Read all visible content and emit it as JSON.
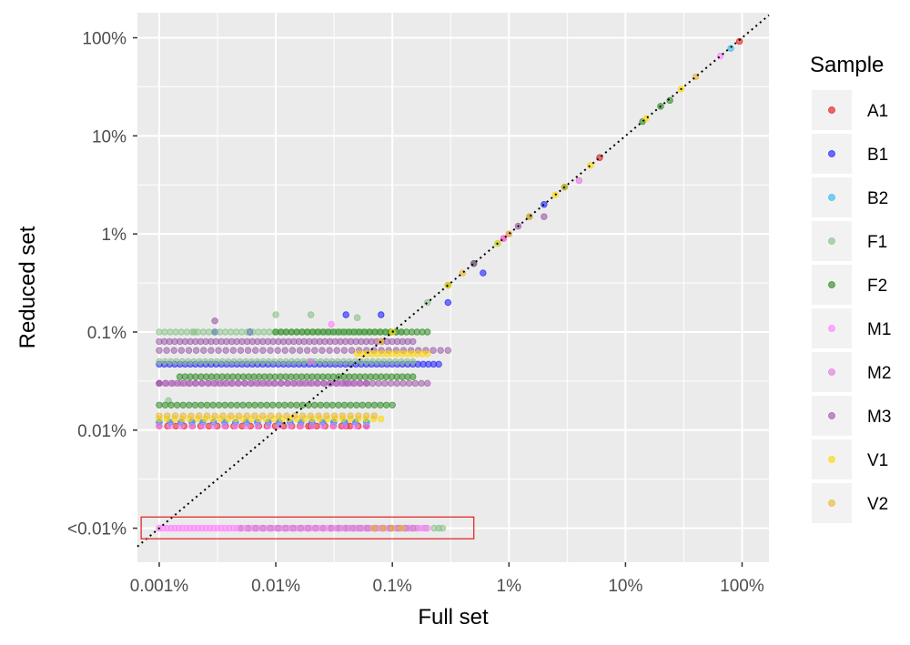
{
  "chart_data": {
    "type": "scatter",
    "xlabel": "Full set",
    "ylabel": "Reduced set",
    "x_scale": "log10",
    "y_scale": "log10",
    "x_ticks": [
      {
        "value": 0.001,
        "label": "0.001%"
      },
      {
        "value": 0.01,
        "label": "0.01%"
      },
      {
        "value": 0.1,
        "label": "0.1%"
      },
      {
        "value": 1,
        "label": "1%"
      },
      {
        "value": 10,
        "label": "10%"
      },
      {
        "value": 100,
        "label": "100%"
      }
    ],
    "y_ticks": [
      {
        "value": 0.001,
        "label": "<0.01%"
      },
      {
        "value": 0.01,
        "label": "0.01%"
      },
      {
        "value": 0.1,
        "label": "0.1%"
      },
      {
        "value": 1,
        "label": "1%"
      },
      {
        "value": 10,
        "label": "10%"
      },
      {
        "value": 100,
        "label": "100%"
      }
    ],
    "xlim": [
      0.00065,
      170
    ],
    "ylim": [
      0.00045,
      180
    ],
    "reference_line": "y = x (dotted)",
    "highlight_box": {
      "x": [
        0.0007,
        0.5
      ],
      "y": [
        0.00078,
        0.0013
      ],
      "color": "#e41a1c"
    },
    "grid": true,
    "legend": {
      "title": "Sample",
      "position": "right"
    },
    "series": [
      {
        "name": "A1",
        "color": "#e41a1c",
        "points": [
          [
            0.02,
            0.011
          ],
          [
            0.04,
            0.011
          ],
          [
            0.06,
            0.011
          ],
          [
            0.9,
            0.9
          ],
          [
            6,
            6
          ],
          [
            95,
            92
          ]
        ],
        "strips": [
          {
            "y": 0.011,
            "x": [
              0.001,
              0.06
            ],
            "n": 26
          }
        ]
      },
      {
        "name": "B1",
        "color": "#1f1fff",
        "points": [
          [
            0.003,
            0.1
          ],
          [
            0.006,
            0.1
          ],
          [
            0.04,
            0.15
          ],
          [
            0.08,
            0.15
          ],
          [
            0.3,
            0.2
          ],
          [
            0.6,
            0.4
          ],
          [
            1.5,
            1.5
          ],
          [
            2,
            2
          ]
        ],
        "strips": [
          {
            "y": 0.047,
            "x": [
              0.001,
              0.25
            ],
            "n": 55
          },
          {
            "y": 0.012,
            "x": [
              0.001,
              0.06
            ],
            "n": 20
          }
        ]
      },
      {
        "name": "B2",
        "color": "#33bbee",
        "points": [
          [
            0.06,
            0.012
          ],
          [
            0.8,
            0.8
          ],
          [
            80,
            78
          ]
        ],
        "strips": [
          {
            "y": 0.012,
            "x": [
              0.001,
              0.06
            ],
            "n": 20
          }
        ]
      },
      {
        "name": "F1",
        "color": "#88c088",
        "points": [
          [
            0.002,
            0.1
          ],
          [
            0.01,
            0.15
          ],
          [
            0.02,
            0.15
          ],
          [
            0.05,
            0.14
          ],
          [
            0.2,
            0.2
          ],
          [
            0.5,
            0.5
          ],
          [
            0.0012,
            0.02
          ],
          [
            0.25,
            0.001
          ]
        ],
        "strips": [
          {
            "y": 0.05,
            "x": [
              0.001,
              0.15
            ],
            "n": 45
          },
          {
            "y": 0.1,
            "x": [
              0.001,
              0.12
            ],
            "n": 45
          },
          {
            "y": 0.001,
            "x": [
              0.03,
              0.27
            ],
            "n": 14
          }
        ]
      },
      {
        "name": "F2",
        "color": "#2e8b22",
        "points": [
          [
            0.3,
            0.3
          ],
          [
            0.5,
            0.5
          ],
          [
            3,
            3
          ],
          [
            14,
            14
          ],
          [
            20,
            20
          ],
          [
            24,
            23
          ]
        ],
        "strips": [
          {
            "y": 0.018,
            "x": [
              0.001,
              0.1
            ],
            "n": 40
          },
          {
            "y": 0.035,
            "x": [
              0.0015,
              0.15
            ],
            "n": 45
          },
          {
            "y": 0.1,
            "x": [
              0.01,
              0.2
            ],
            "n": 30
          },
          {
            "y": 0.001,
            "x": [
              0.005,
              0.15
            ],
            "n": 24
          }
        ]
      },
      {
        "name": "M1",
        "color": "#ff80ff",
        "points": [
          [
            0.03,
            0.12
          ],
          [
            0.9,
            0.9
          ],
          [
            65,
            65
          ]
        ],
        "strips": [
          {
            "y": 0.001,
            "x": [
              0.001,
              0.2
            ],
            "n": 70
          },
          {
            "y": 0.011,
            "x": [
              0.001,
              0.06
            ],
            "n": 20
          }
        ]
      },
      {
        "name": "M2",
        "color": "#e07ae0",
        "points": [
          [
            0.02,
            0.05
          ],
          [
            0.04,
            0.03
          ],
          [
            0.06,
            0.03
          ],
          [
            1,
            1
          ],
          [
            4,
            3.5
          ]
        ],
        "strips": [
          {
            "y": 0.03,
            "x": [
              0.001,
              0.06
            ],
            "n": 30
          }
        ]
      },
      {
        "name": "M3",
        "color": "#9b59a8",
        "points": [
          [
            0.001,
            0.03
          ],
          [
            0.003,
            0.13
          ],
          [
            0.5,
            0.5
          ],
          [
            1.2,
            1.2
          ],
          [
            2,
            1.5
          ]
        ],
        "strips": [
          {
            "y": 0.03,
            "x": [
              0.001,
              0.2
            ],
            "n": 45
          },
          {
            "y": 0.08,
            "x": [
              0.001,
              0.15
            ],
            "n": 50
          },
          {
            "y": 0.065,
            "x": [
              0.001,
              0.3
            ],
            "n": 40
          }
        ]
      },
      {
        "name": "V1",
        "color": "#ffd700",
        "points": [
          [
            0.1,
            0.1
          ],
          [
            0.3,
            0.3
          ],
          [
            0.8,
            0.8
          ],
          [
            1.5,
            1.5
          ],
          [
            2.5,
            2.5
          ],
          [
            5,
            5
          ],
          [
            15,
            15
          ],
          [
            30,
            30
          ]
        ],
        "strips": [
          {
            "y": 0.013,
            "x": [
              0.001,
              0.08
            ],
            "n": 30
          },
          {
            "y": 0.06,
            "x": [
              0.05,
              0.2
            ],
            "n": 15
          }
        ]
      },
      {
        "name": "V2",
        "color": "#e8b830",
        "points": [
          [
            0.08,
            0.08
          ],
          [
            0.4,
            0.4
          ],
          [
            1,
            1
          ],
          [
            3,
            3
          ],
          [
            40,
            40
          ]
        ],
        "strips": [
          {
            "y": 0.014,
            "x": [
              0.001,
              0.07
            ],
            "n": 28
          },
          {
            "y": 0.001,
            "x": [
              0.07,
              0.12
            ],
            "n": 4
          }
        ]
      }
    ]
  }
}
